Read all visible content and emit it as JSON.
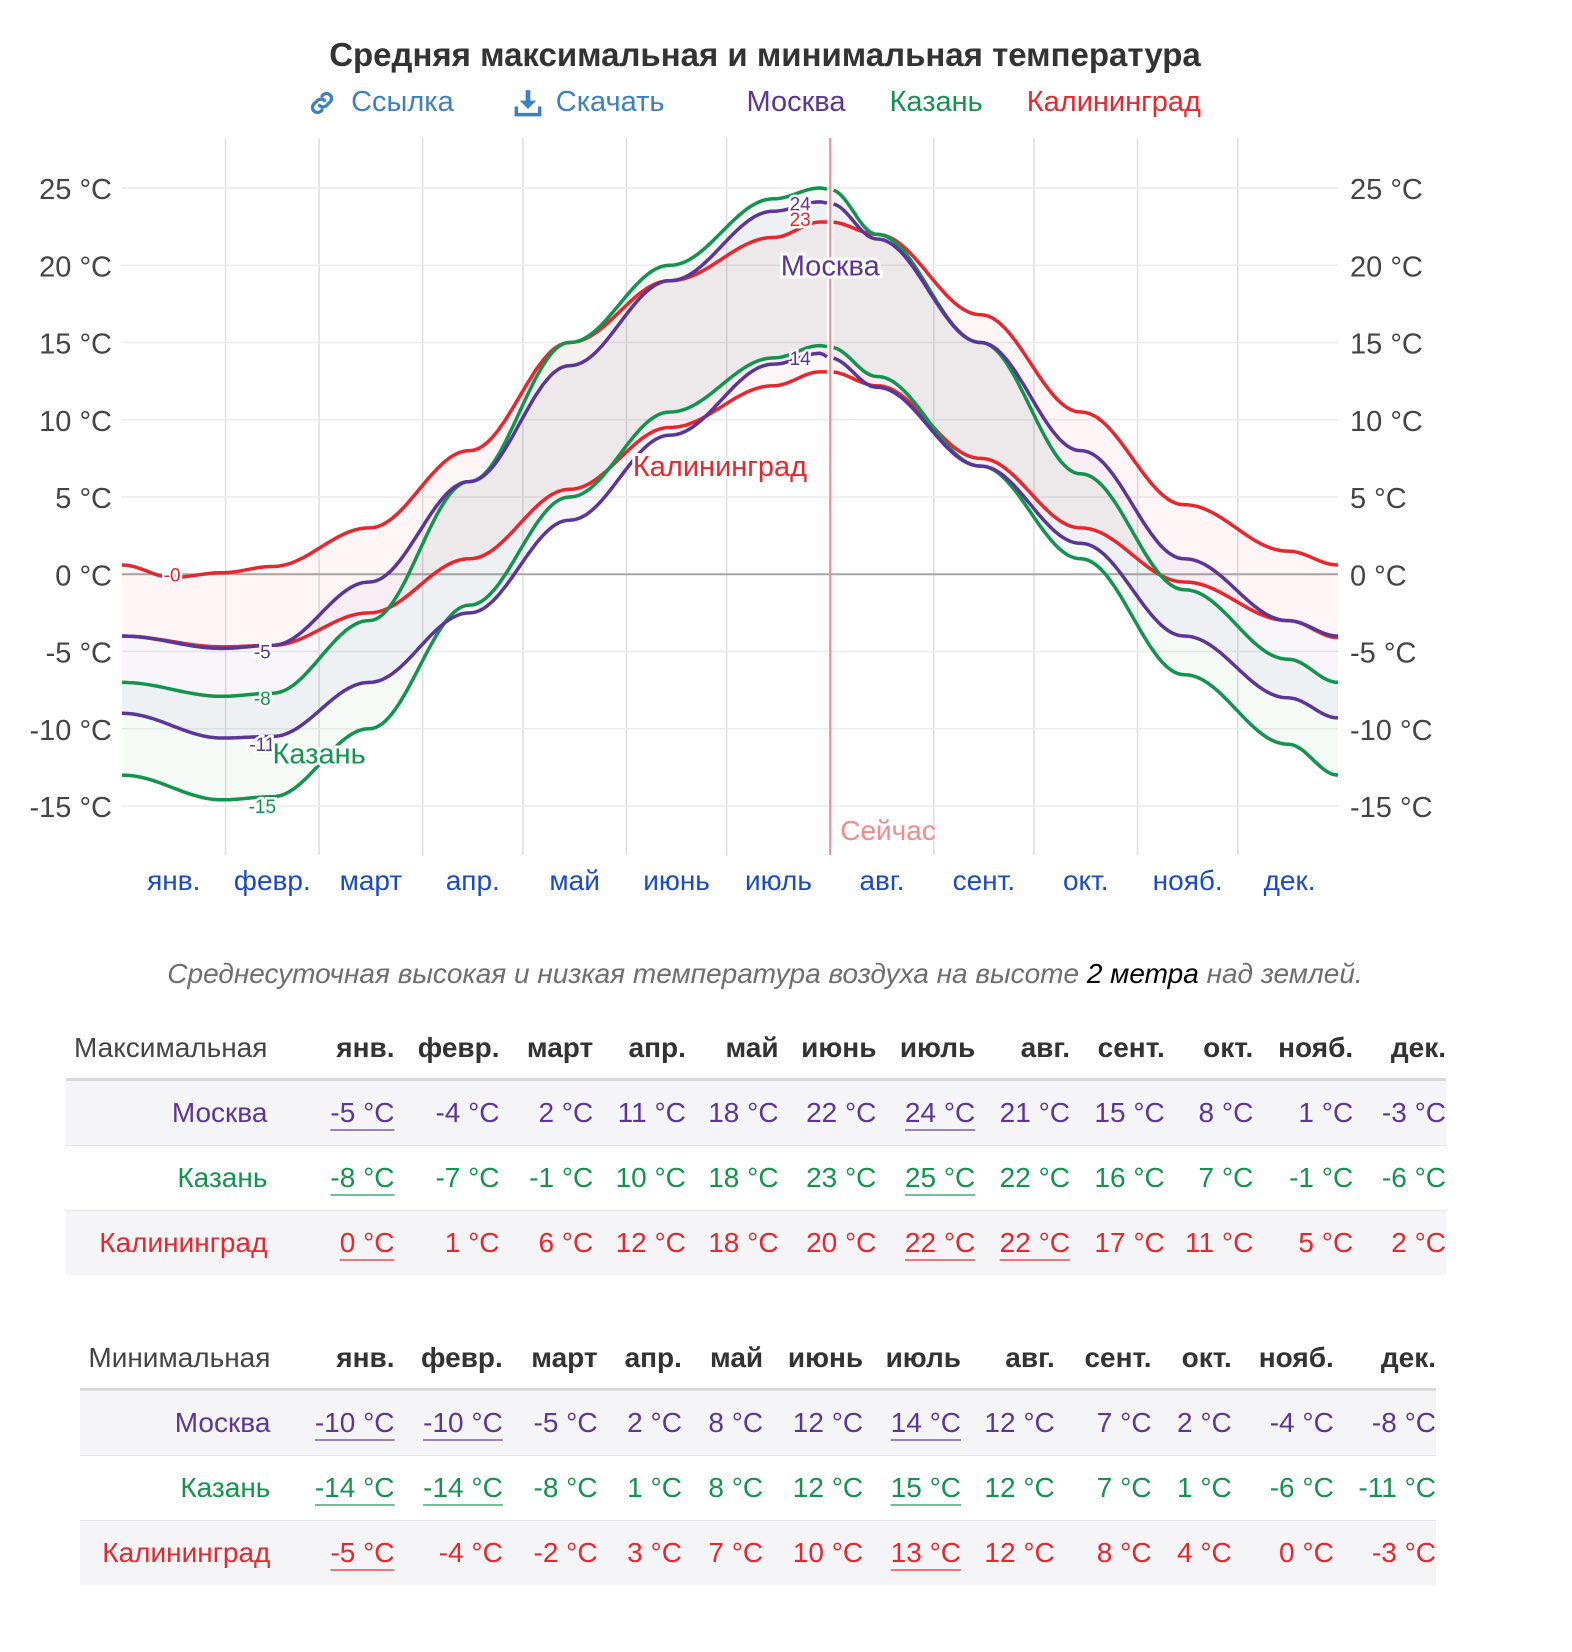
{
  "page": {
    "title": "Средняя максимальная и минимальная температура",
    "link_label": "Ссылка",
    "download_label": "Скачать",
    "caption_before": "Среднесуточная высокая и низкая температура воздуха на высоте ",
    "caption_highlight": "2 метра",
    "caption_after": " над землей."
  },
  "colors": {
    "moscow": "#5c3598",
    "kazan": "#12944f",
    "kaliningrad": "#e8262d",
    "link": "#3b7fc4",
    "now_line": "#f28c8c",
    "month_label": "#1a4bc4",
    "axis_text": "#444444"
  },
  "icons": {
    "link": "link-icon",
    "download": "download-icon"
  },
  "chart_data": {
    "type": "area",
    "title": "Средняя максимальная и минимальная температура",
    "months": [
      "янв.",
      "февр.",
      "март",
      "апр.",
      "май",
      "июнь",
      "июль",
      "авг.",
      "сент.",
      "окт.",
      "нояб.",
      "дек."
    ],
    "y_ticks": [
      "25 °C",
      "20 °C",
      "15 °C",
      "10 °C",
      "5 °C",
      "0 °C",
      "-5 °C",
      "-10 °C",
      "-15 °C"
    ],
    "y_tick_values": [
      25,
      20,
      15,
      10,
      5,
      0,
      -5,
      -10,
      -15
    ],
    "ylim": [
      -17,
      28
    ],
    "x_range_days": [
      1,
      365
    ],
    "now_label": "Сейчас",
    "now_day": 213,
    "grid": true,
    "series": [
      {
        "name": "Москва",
        "key": "moscow",
        "max_points": [
          [
            1,
            -4
          ],
          [
            31,
            -4.8
          ],
          [
            46,
            -4.6
          ],
          [
            75,
            -0.5
          ],
          [
            105,
            6
          ],
          [
            135,
            13.5
          ],
          [
            165,
            19
          ],
          [
            196,
            23.5
          ],
          [
            210,
            24.1
          ],
          [
            213,
            24
          ],
          [
            227,
            21.7
          ],
          [
            258,
            15
          ],
          [
            288,
            8
          ],
          [
            319,
            1
          ],
          [
            350,
            -3
          ],
          [
            365,
            -4
          ]
        ],
        "min_points": [
          [
            1,
            -9
          ],
          [
            31,
            -10.6
          ],
          [
            46,
            -10.5
          ],
          [
            75,
            -7
          ],
          [
            105,
            -2.5
          ],
          [
            135,
            3.5
          ],
          [
            165,
            9
          ],
          [
            196,
            13.6
          ],
          [
            210,
            14.3
          ],
          [
            213,
            14
          ],
          [
            227,
            12.1
          ],
          [
            258,
            7
          ],
          [
            288,
            2
          ],
          [
            319,
            -4
          ],
          [
            350,
            -8
          ],
          [
            365,
            -9.3
          ]
        ],
        "annotations": [
          [
            43,
            -5,
            "-5"
          ],
          [
            43,
            -11,
            "-11"
          ],
          [
            204,
            24,
            "24"
          ],
          [
            204,
            14,
            "14"
          ]
        ]
      },
      {
        "name": "Казань",
        "key": "kazan",
        "max_points": [
          [
            1,
            -7
          ],
          [
            31,
            -7.9
          ],
          [
            46,
            -7.7
          ],
          [
            75,
            -3
          ],
          [
            105,
            6
          ],
          [
            135,
            15
          ],
          [
            165,
            20
          ],
          [
            196,
            24.3
          ],
          [
            210,
            25
          ],
          [
            213,
            24.9
          ],
          [
            227,
            22
          ],
          [
            258,
            15
          ],
          [
            288,
            6.5
          ],
          [
            319,
            -1
          ],
          [
            350,
            -5.5
          ],
          [
            365,
            -7
          ]
        ],
        "min_points": [
          [
            1,
            -13
          ],
          [
            31,
            -14.6
          ],
          [
            46,
            -14.4
          ],
          [
            75,
            -10
          ],
          [
            105,
            -2
          ],
          [
            135,
            5
          ],
          [
            165,
            10.5
          ],
          [
            196,
            14
          ],
          [
            210,
            14.8
          ],
          [
            213,
            14.7
          ],
          [
            227,
            12.8
          ],
          [
            258,
            7
          ],
          [
            288,
            1
          ],
          [
            319,
            -6.5
          ],
          [
            350,
            -11
          ],
          [
            365,
            -13
          ]
        ],
        "annotations": [
          [
            43,
            -8,
            "-8"
          ],
          [
            43,
            -15,
            "-15"
          ]
        ]
      },
      {
        "name": "Калининград",
        "key": "kaliningrad",
        "max_points": [
          [
            1,
            0.6
          ],
          [
            16,
            -0.2
          ],
          [
            31,
            0.1
          ],
          [
            46,
            0.5
          ],
          [
            75,
            3
          ],
          [
            105,
            8
          ],
          [
            135,
            15
          ],
          [
            165,
            19
          ],
          [
            196,
            21.8
          ],
          [
            210,
            22.8
          ],
          [
            213,
            22.8
          ],
          [
            227,
            22
          ],
          [
            258,
            16.8
          ],
          [
            288,
            10.5
          ],
          [
            319,
            4.5
          ],
          [
            350,
            1.5
          ],
          [
            365,
            0.6
          ]
        ],
        "min_points": [
          [
            1,
            -4
          ],
          [
            31,
            -4.7
          ],
          [
            46,
            -4.6
          ],
          [
            75,
            -2.5
          ],
          [
            105,
            1
          ],
          [
            135,
            5.5
          ],
          [
            165,
            9.5
          ],
          [
            196,
            12.2
          ],
          [
            210,
            13.1
          ],
          [
            213,
            13.1
          ],
          [
            227,
            12.2
          ],
          [
            258,
            7.5
          ],
          [
            288,
            3
          ],
          [
            319,
            -0.5
          ],
          [
            350,
            -3
          ],
          [
            365,
            -4.1
          ]
        ],
        "annotations": [
          [
            16,
            0,
            "-0"
          ],
          [
            204,
            23,
            "23"
          ]
        ]
      }
    ],
    "inline_labels": [
      {
        "series": "moscow",
        "text": "Москва",
        "day": 213,
        "temp": 20
      },
      {
        "series": "kazan",
        "text": "Казань",
        "day": 60,
        "temp": -11.6
      },
      {
        "series": "kaliningrad",
        "text": "Калининград",
        "day": 180,
        "temp": 7
      }
    ]
  },
  "table_max": {
    "corner": "Максимальная",
    "months": [
      "янв.",
      "февр.",
      "март",
      "апр.",
      "май",
      "июнь",
      "июль",
      "авг.",
      "сент.",
      "окт.",
      "нояб.",
      "дек."
    ],
    "rows": [
      {
        "city": "Москва",
        "key": "moscow",
        "values": [
          "-5 °C",
          "-4 °C",
          "2 °C",
          "11 °C",
          "18 °C",
          "22 °C",
          "24 °C",
          "21 °C",
          "15 °C",
          "8 °C",
          "1 °C",
          "-3 °C"
        ],
        "underlined": [
          0,
          6
        ]
      },
      {
        "city": "Казань",
        "key": "kazan",
        "values": [
          "-8 °C",
          "-7 °C",
          "-1 °C",
          "10 °C",
          "18 °C",
          "23 °C",
          "25 °C",
          "22 °C",
          "16 °C",
          "7 °C",
          "-1 °C",
          "-6 °C"
        ],
        "underlined": [
          0,
          6
        ]
      },
      {
        "city": "Калининград",
        "key": "kaliningrad",
        "values": [
          "0 °C",
          "1 °C",
          "6 °C",
          "12 °C",
          "18 °C",
          "20 °C",
          "22 °C",
          "22 °C",
          "17 °C",
          "11 °C",
          "5 °C",
          "2 °C"
        ],
        "underlined": [
          0,
          6,
          7
        ]
      }
    ]
  },
  "table_min": {
    "corner": "Минимальная",
    "months": [
      "янв.",
      "февр.",
      "март",
      "апр.",
      "май",
      "июнь",
      "июль",
      "авг.",
      "сент.",
      "окт.",
      "нояб.",
      "дек."
    ],
    "rows": [
      {
        "city": "Москва",
        "key": "moscow",
        "values": [
          "-10 °C",
          "-10 °C",
          "-5 °C",
          "2 °C",
          "8 °C",
          "12 °C",
          "14 °C",
          "12 °C",
          "7 °C",
          "2 °C",
          "-4 °C",
          "-8 °C"
        ],
        "underlined": [
          0,
          1,
          6
        ]
      },
      {
        "city": "Казань",
        "key": "kazan",
        "values": [
          "-14 °C",
          "-14 °C",
          "-8 °C",
          "1 °C",
          "8 °C",
          "12 °C",
          "15 °C",
          "12 °C",
          "7 °C",
          "1 °C",
          "-6 °C",
          "-11 °C"
        ],
        "underlined": [
          0,
          1,
          6
        ]
      },
      {
        "city": "Калининград",
        "key": "kaliningrad",
        "values": [
          "-5 °C",
          "-4 °C",
          "-2 °C",
          "3 °C",
          "7 °C",
          "10 °C",
          "13 °C",
          "12 °C",
          "8 °C",
          "4 °C",
          "0 °C",
          "-3 °C"
        ],
        "underlined": [
          0,
          6
        ]
      }
    ]
  }
}
